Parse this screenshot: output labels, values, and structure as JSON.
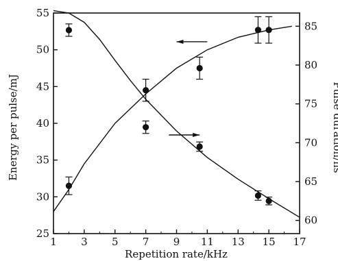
{
  "chart_data": {
    "type": "scatter",
    "xlabel": "Repetition rate/kHz",
    "ylabel_left": "Energy per pulse/mJ",
    "ylabel_right": "Pulse duration/ns",
    "x_ticks": [
      1,
      3,
      5,
      7,
      9,
      11,
      13,
      15,
      17
    ],
    "y_left_ticks": [
      25,
      30,
      35,
      40,
      45,
      50,
      55
    ],
    "y_right_ticks": [
      60,
      65,
      70,
      75,
      80,
      85
    ],
    "xlim": [
      1,
      17
    ],
    "ylim_left": [
      25,
      55
    ],
    "ylim_right": [
      58.3,
      86.7
    ],
    "grid": false,
    "series": [
      {
        "axis": "left",
        "points": [
          {
            "x": 2,
            "y": 31.5,
            "err": 1.2
          },
          {
            "x": 7,
            "y": 44.5,
            "err": 1.5
          },
          {
            "x": 10.5,
            "y": 47.5,
            "err": 1.5
          },
          {
            "x": 14.3,
            "y": 52.7,
            "err": 1.8
          },
          {
            "x": 15,
            "y": 52.7,
            "err": 1.8
          }
        ],
        "fit": [
          [
            1,
            28
          ],
          [
            2,
            31
          ],
          [
            3,
            34.5
          ],
          [
            5,
            40
          ],
          [
            7,
            44
          ],
          [
            9,
            47.5
          ],
          [
            11,
            50
          ],
          [
            13,
            51.7
          ],
          [
            15,
            52.7
          ],
          [
            16.5,
            53.2
          ]
        ]
      },
      {
        "axis": "right",
        "points": [
          {
            "x": 2,
            "y": 84.5,
            "err": 0.8
          },
          {
            "x": 7,
            "y": 72,
            "err": 0.8
          },
          {
            "x": 10.5,
            "y": 69.5,
            "err": 0.6
          },
          {
            "x": 14.3,
            "y": 63.2,
            "err": 0.6
          },
          {
            "x": 15,
            "y": 62.5,
            "err": 0.5
          }
        ],
        "fit": [
          [
            1,
            87
          ],
          [
            2,
            86.7
          ],
          [
            3,
            85.5
          ],
          [
            4,
            83.3
          ],
          [
            5,
            80.6
          ],
          [
            6,
            78
          ],
          [
            7,
            75.6
          ],
          [
            9,
            71.5
          ],
          [
            11,
            68.1
          ],
          [
            13,
            65.3
          ],
          [
            15,
            62.8
          ],
          [
            17,
            60.4
          ]
        ]
      }
    ],
    "arrows": [
      {
        "points_to": "left",
        "x_data": [
          9,
          11
        ],
        "y_right": 83
      },
      {
        "points_to": "right",
        "x_data": [
          8.5,
          10.5
        ],
        "y_right": 71
      }
    ]
  }
}
